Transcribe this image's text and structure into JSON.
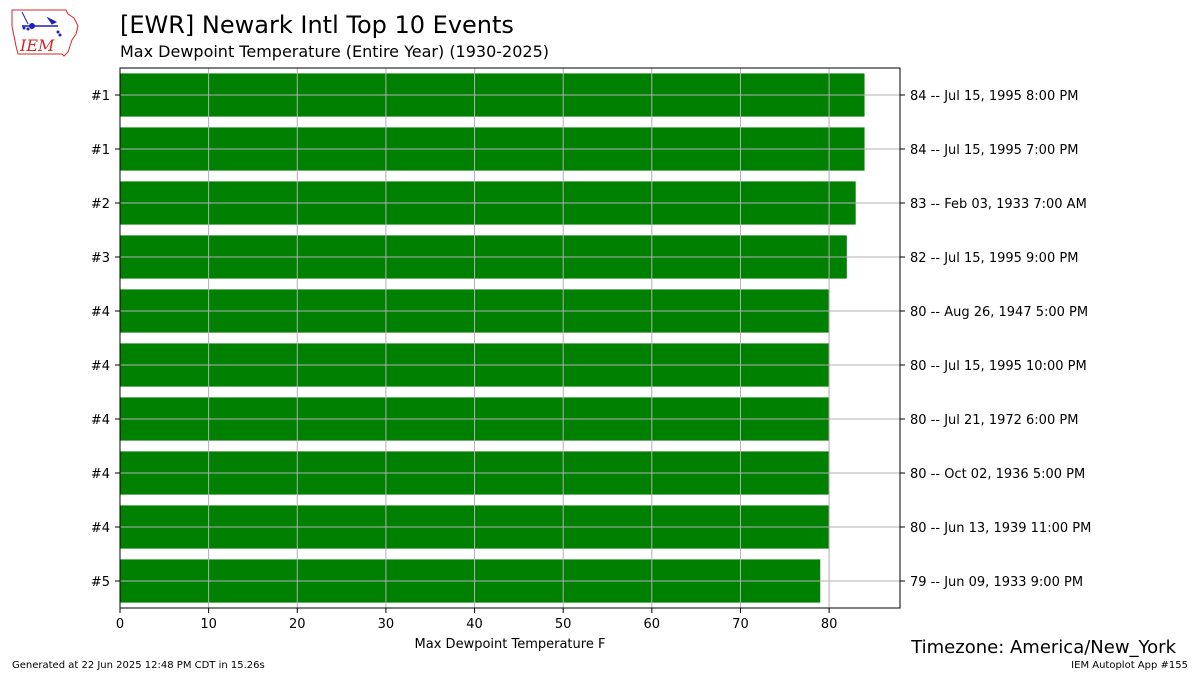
{
  "header": {
    "logo_text": "IEM",
    "title": "[EWR] Newark Intl Top 10 Events",
    "subtitle": "Max Dewpoint Temperature  (Entire Year) (1930-2025)"
  },
  "footer": {
    "timezone": "Timezone: America/New_York",
    "generated": "Generated at 22 Jun 2025 12:48 PM CDT in 15.26s",
    "app_id": "IEM Autoplot App #155"
  },
  "colors": {
    "bar": "#008000",
    "grid": "#b0b0b0",
    "logo_red": "#d62728",
    "logo_blue": "#1f1fbf"
  },
  "chart_data": {
    "type": "bar",
    "orientation": "horizontal",
    "xlabel": "Max Dewpoint Temperature F",
    "xlim": [
      0,
      88
    ],
    "xticks": [
      0,
      10,
      20,
      30,
      40,
      50,
      60,
      70,
      80
    ],
    "grid": true,
    "ranks": [
      "#1",
      "#1",
      "#2",
      "#3",
      "#4",
      "#4",
      "#4",
      "#4",
      "#4",
      "#5"
    ],
    "values": [
      84,
      84,
      83,
      82,
      80,
      80,
      80,
      80,
      80,
      79
    ],
    "event_labels": [
      "84 -- Jul 15, 1995 8:00 PM",
      "84 -- Jul 15, 1995 7:00 PM",
      "83 -- Feb 03, 1933 7:00 AM",
      "82 -- Jul 15, 1995 9:00 PM",
      "80 -- Aug 26, 1947 5:00 PM",
      "80 -- Jul 15, 1995 10:00 PM",
      "80 -- Jul 21, 1972 6:00 PM",
      "80 -- Oct 02, 1936 5:00 PM",
      "80 -- Jun 13, 1939 11:00 PM",
      "79 -- Jun 09, 1933 9:00 PM"
    ]
  }
}
